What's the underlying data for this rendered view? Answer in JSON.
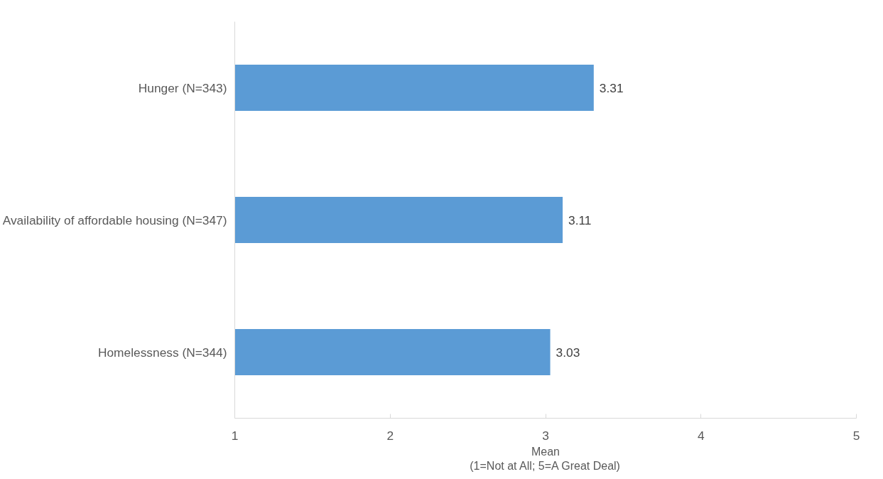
{
  "chart_data": {
    "type": "bar",
    "orientation": "horizontal",
    "categories": [
      "Hunger (N=343)",
      "Availability of affordable housing (N=347)",
      "Homelessness (N=344)"
    ],
    "values": [
      3.31,
      3.11,
      3.03
    ],
    "color": "#5b9bd5",
    "xlim": [
      1,
      5
    ],
    "xticks": [
      1,
      2,
      3,
      4,
      5
    ],
    "xlabel": "Mean\n(1=Not at All; 5=A Great Deal)",
    "data_labels": true,
    "grid": false
  }
}
